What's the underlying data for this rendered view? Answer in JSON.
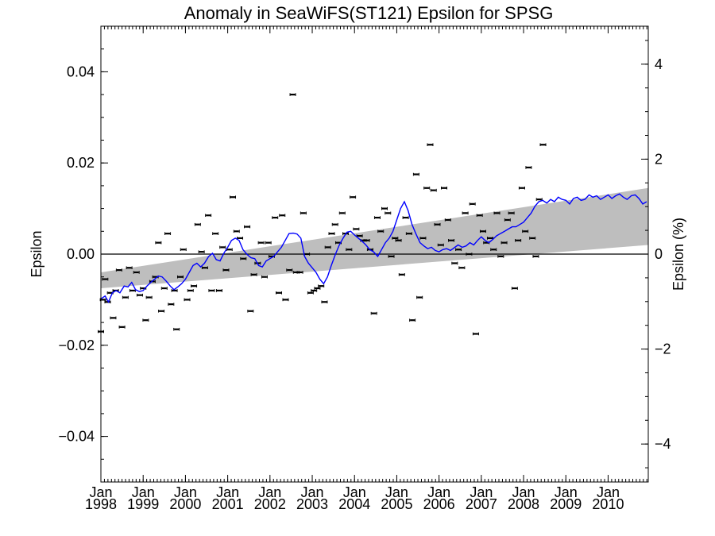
{
  "chart_data": {
    "type": "scatter",
    "title": "Anomaly in SeaWiFS(ST121) Epsilon for SPSG",
    "ylabel": "Epsilon",
    "ylabel_right": "Epsilon (%)",
    "xlim": [
      1998.0,
      2010.95
    ],
    "ylim": [
      -0.05,
      0.05
    ],
    "ylim_right": [
      -4.8,
      4.8
    ],
    "y_ticks": [
      {
        "value": 0.04,
        "label": "0.04"
      },
      {
        "value": 0.02,
        "label": "0.02"
      },
      {
        "value": 0.0,
        "label": "0.00"
      },
      {
        "value": -0.02,
        "label": "−0.02"
      },
      {
        "value": -0.04,
        "label": "−0.04"
      }
    ],
    "y_right_ticks": [
      {
        "value": 4,
        "label": "4"
      },
      {
        "value": 2,
        "label": "2"
      },
      {
        "value": 0,
        "label": "0"
      },
      {
        "value": -2,
        "label": "−2"
      },
      {
        "value": -4,
        "label": "−4"
      }
    ],
    "x_ticks": [
      {
        "value": 1998.0,
        "month": "Jan",
        "year": "1998"
      },
      {
        "value": 1999.0,
        "month": "Jan",
        "year": "1999"
      },
      {
        "value": 2000.0,
        "month": "Jan",
        "year": "2000"
      },
      {
        "value": 2001.0,
        "month": "Jan",
        "year": "2001"
      },
      {
        "value": 2002.0,
        "month": "Jan",
        "year": "2002"
      },
      {
        "value": 2003.0,
        "month": "Jan",
        "year": "2003"
      },
      {
        "value": 2004.0,
        "month": "Jan",
        "year": "2004"
      },
      {
        "value": 2005.0,
        "month": "Jan",
        "year": "2005"
      },
      {
        "value": 2006.0,
        "month": "Jan",
        "year": "2006"
      },
      {
        "value": 2007.0,
        "month": "Jan",
        "year": "2007"
      },
      {
        "value": 2008.0,
        "month": "Jan",
        "year": "2008"
      },
      {
        "value": 2009.0,
        "month": "Jan",
        "year": "2009"
      },
      {
        "value": 2010.0,
        "month": "Jan",
        "year": "2010"
      }
    ],
    "zero_line": true,
    "trend_band": {
      "lower": [
        [
          1998.0,
          -0.0075
        ],
        [
          2010.95,
          0.002
        ]
      ],
      "upper": [
        [
          1998.0,
          -0.004
        ],
        [
          2010.95,
          0.0145
        ]
      ],
      "color": "#bebebe"
    },
    "points": [
      [
        1998.0,
        -0.017
      ],
      [
        1998.05,
        -0.01
      ],
      [
        1998.1,
        -0.0055
      ],
      [
        1998.16,
        -0.0105
      ],
      [
        1998.22,
        -0.0085
      ],
      [
        1998.29,
        -0.014
      ],
      [
        1998.35,
        -0.008
      ],
      [
        1998.43,
        -0.0035
      ],
      [
        1998.5,
        -0.016
      ],
      [
        1998.58,
        -0.0095
      ],
      [
        1998.67,
        -0.003
      ],
      [
        1998.75,
        -0.008
      ],
      [
        1998.84,
        -0.004
      ],
      [
        1998.92,
        -0.009
      ],
      [
        1999.0,
        -0.0075
      ],
      [
        1999.06,
        -0.0145
      ],
      [
        1999.14,
        -0.0095
      ],
      [
        1999.22,
        -0.006
      ],
      [
        1999.29,
        -0.005
      ],
      [
        1999.36,
        0.0025
      ],
      [
        1999.43,
        -0.0125
      ],
      [
        1999.5,
        -0.0075
      ],
      [
        1999.58,
        0.0045
      ],
      [
        1999.66,
        -0.011
      ],
      [
        1999.74,
        -0.008
      ],
      [
        1999.79,
        -0.0165
      ],
      [
        1999.88,
        -0.005
      ],
      [
        1999.95,
        0.001
      ],
      [
        2000.04,
        -0.01
      ],
      [
        2000.12,
        -0.008
      ],
      [
        2000.2,
        -0.007
      ],
      [
        2000.29,
        0.0065
      ],
      [
        2000.38,
        0.0005
      ],
      [
        2000.46,
        -0.003
      ],
      [
        2000.54,
        0.0085
      ],
      [
        2000.62,
        -0.008
      ],
      [
        2000.71,
        0.0045
      ],
      [
        2000.8,
        -0.008
      ],
      [
        2000.88,
        0.0015
      ],
      [
        2000.96,
        -0.0035
      ],
      [
        2001.04,
        0.001
      ],
      [
        2001.12,
        0.0125
      ],
      [
        2001.21,
        0.005
      ],
      [
        2001.29,
        0.0035
      ],
      [
        2001.37,
        -0.001
      ],
      [
        2001.46,
        0.006
      ],
      [
        2001.54,
        -0.0125
      ],
      [
        2001.62,
        -0.0045
      ],
      [
        2001.71,
        -0.002
      ],
      [
        2001.79,
        0.0025
      ],
      [
        2001.87,
        -0.005
      ],
      [
        2001.96,
        0.0025
      ],
      [
        2002.04,
        -0.0005
      ],
      [
        2002.12,
        0.008
      ],
      [
        2002.21,
        -0.0085
      ],
      [
        2002.29,
        0.0085
      ],
      [
        2002.37,
        -0.01
      ],
      [
        2002.46,
        -0.0035
      ],
      [
        2002.54,
        0.035
      ],
      [
        2002.62,
        -0.004
      ],
      [
        2002.71,
        -0.004
      ],
      [
        2002.79,
        0.009
      ],
      [
        2002.87,
        0.0
      ],
      [
        2002.96,
        -0.0085
      ],
      [
        2003.04,
        -0.008
      ],
      [
        2003.12,
        -0.0075
      ],
      [
        2003.21,
        -0.007
      ],
      [
        2003.29,
        -0.0105
      ],
      [
        2003.37,
        0.0015
      ],
      [
        2003.46,
        0.0045
      ],
      [
        2003.54,
        0.0065
      ],
      [
        2003.62,
        0.0025
      ],
      [
        2003.71,
        0.009
      ],
      [
        2003.79,
        0.0045
      ],
      [
        2003.87,
        0.001
      ],
      [
        2003.96,
        0.0125
      ],
      [
        2004.04,
        0.0055
      ],
      [
        2004.12,
        0.004
      ],
      [
        2004.21,
        0.003
      ],
      [
        2004.29,
        0.003
      ],
      [
        2004.37,
        0.001
      ],
      [
        2004.46,
        -0.013
      ],
      [
        2004.54,
        0.008
      ],
      [
        2004.62,
        0.005
      ],
      [
        2004.71,
        0.01
      ],
      [
        2004.79,
        0.009
      ],
      [
        2004.87,
        -0.0005
      ],
      [
        2004.96,
        0.0035
      ],
      [
        2005.04,
        0.003
      ],
      [
        2005.12,
        -0.0045
      ],
      [
        2005.21,
        0.008
      ],
      [
        2005.29,
        0.0045
      ],
      [
        2005.37,
        -0.0145
      ],
      [
        2005.46,
        0.0175
      ],
      [
        2005.54,
        -0.0095
      ],
      [
        2005.62,
        0.0035
      ],
      [
        2005.71,
        0.0145
      ],
      [
        2005.79,
        0.024
      ],
      [
        2005.87,
        0.014
      ],
      [
        2005.96,
        0.0065
      ],
      [
        2006.04,
        0.002
      ],
      [
        2006.12,
        0.0145
      ],
      [
        2006.21,
        0.0075
      ],
      [
        2006.29,
        0.003
      ],
      [
        2006.37,
        -0.002
      ],
      [
        2006.46,
        0.001
      ],
      [
        2006.54,
        -0.003
      ],
      [
        2006.62,
        0.009
      ],
      [
        2006.71,
        0.0
      ],
      [
        2006.79,
        0.011
      ],
      [
        2006.87,
        -0.0175
      ],
      [
        2006.96,
        0.0085
      ],
      [
        2007.04,
        0.005
      ],
      [
        2007.12,
        0.0025
      ],
      [
        2007.21,
        0.0035
      ],
      [
        2007.29,
        0.001
      ],
      [
        2007.37,
        0.009
      ],
      [
        2007.46,
        -0.0005
      ],
      [
        2007.54,
        0.0025
      ],
      [
        2007.62,
        0.0075
      ],
      [
        2007.71,
        0.009
      ],
      [
        2007.79,
        -0.0075
      ],
      [
        2007.87,
        0.003
      ],
      [
        2007.96,
        0.0145
      ],
      [
        2008.04,
        0.005
      ],
      [
        2008.12,
        0.019
      ],
      [
        2008.21,
        0.0035
      ],
      [
        2008.29,
        -0.0005
      ],
      [
        2008.37,
        0.012
      ],
      [
        2008.46,
        0.024
      ]
    ],
    "line_series": {
      "color": "#0000ff",
      "points": [
        [
          1998.0,
          -0.0098
        ],
        [
          1998.1,
          -0.0092
        ],
        [
          1998.18,
          -0.0105
        ],
        [
          1998.27,
          -0.0085
        ],
        [
          1998.36,
          -0.008
        ],
        [
          1998.45,
          -0.0085
        ],
        [
          1998.55,
          -0.007
        ],
        [
          1998.64,
          -0.0072
        ],
        [
          1998.73,
          -0.0062
        ],
        [
          1998.82,
          -0.0078
        ],
        [
          1998.91,
          -0.0082
        ],
        [
          1999.0,
          -0.008
        ],
        [
          1999.09,
          -0.007
        ],
        [
          1999.18,
          -0.0062
        ],
        [
          1999.27,
          -0.0055
        ],
        [
          1999.36,
          -0.0048
        ],
        [
          1999.45,
          -0.005
        ],
        [
          1999.55,
          -0.006
        ],
        [
          1999.64,
          -0.007
        ],
        [
          1999.73,
          -0.0078
        ],
        [
          1999.82,
          -0.0072
        ],
        [
          1999.91,
          -0.0065
        ],
        [
          2000.0,
          -0.0055
        ],
        [
          2000.09,
          -0.004
        ],
        [
          2000.18,
          -0.0025
        ],
        [
          2000.27,
          -0.002
        ],
        [
          2000.36,
          -0.0028
        ],
        [
          2000.45,
          -0.002
        ],
        [
          2000.55,
          -0.0005
        ],
        [
          2000.64,
          0.0002
        ],
        [
          2000.73,
          -0.0012
        ],
        [
          2000.82,
          -0.0015
        ],
        [
          2000.91,
          0.0002
        ],
        [
          2001.0,
          0.0015
        ],
        [
          2001.09,
          0.003
        ],
        [
          2001.18,
          0.0035
        ],
        [
          2001.27,
          0.003
        ],
        [
          2001.36,
          0.001
        ],
        [
          2001.45,
          0.0
        ],
        [
          2001.55,
          -0.0008
        ],
        [
          2001.64,
          -0.001
        ],
        [
          2001.73,
          -0.0025
        ],
        [
          2001.82,
          -0.0028
        ],
        [
          2001.91,
          -0.0015
        ],
        [
          2002.0,
          -0.001
        ],
        [
          2002.09,
          -0.0005
        ],
        [
          2002.18,
          0.0005
        ],
        [
          2002.27,
          0.0015
        ],
        [
          2002.36,
          0.003
        ],
        [
          2002.45,
          0.0045
        ],
        [
          2002.55,
          0.0046
        ],
        [
          2002.64,
          0.0044
        ],
        [
          2002.73,
          0.0035
        ],
        [
          2002.82,
          -0.0005
        ],
        [
          2002.91,
          -0.002
        ],
        [
          2003.0,
          -0.003
        ],
        [
          2003.09,
          -0.004
        ],
        [
          2003.18,
          -0.0055
        ],
        [
          2003.27,
          -0.0065
        ],
        [
          2003.36,
          -0.005
        ],
        [
          2003.45,
          -0.0025
        ],
        [
          2003.55,
          0.0
        ],
        [
          2003.64,
          0.002
        ],
        [
          2003.73,
          0.0035
        ],
        [
          2003.82,
          0.0048
        ],
        [
          2003.91,
          0.005
        ],
        [
          2004.0,
          0.0042
        ],
        [
          2004.09,
          0.0035
        ],
        [
          2004.18,
          0.0028
        ],
        [
          2004.27,
          0.002
        ],
        [
          2004.36,
          0.001
        ],
        [
          2004.45,
          0.0005
        ],
        [
          2004.55,
          -0.0005
        ],
        [
          2004.64,
          0.001
        ],
        [
          2004.73,
          0.0025
        ],
        [
          2004.82,
          0.0035
        ],
        [
          2004.91,
          0.005
        ],
        [
          2005.0,
          0.0075
        ],
        [
          2005.09,
          0.01
        ],
        [
          2005.18,
          0.0115
        ],
        [
          2005.27,
          0.0095
        ],
        [
          2005.36,
          0.0065
        ],
        [
          2005.45,
          0.0045
        ],
        [
          2005.55,
          0.0025
        ],
        [
          2005.64,
          0.0018
        ],
        [
          2005.73,
          0.0012
        ],
        [
          2005.82,
          0.0015
        ],
        [
          2005.91,
          0.0008
        ],
        [
          2006.0,
          0.0005
        ],
        [
          2006.09,
          0.001
        ],
        [
          2006.18,
          0.0012
        ],
        [
          2006.27,
          0.0008
        ],
        [
          2006.36,
          0.0014
        ],
        [
          2006.45,
          0.002
        ],
        [
          2006.55,
          0.0015
        ],
        [
          2006.64,
          0.0018
        ],
        [
          2006.73,
          0.0025
        ],
        [
          2006.82,
          0.002
        ],
        [
          2006.91,
          0.003
        ],
        [
          2007.0,
          0.0038
        ],
        [
          2007.09,
          0.003
        ],
        [
          2007.18,
          0.0025
        ],
        [
          2007.27,
          0.0032
        ],
        [
          2007.36,
          0.004
        ],
        [
          2007.45,
          0.0045
        ],
        [
          2007.55,
          0.005
        ],
        [
          2007.64,
          0.0055
        ],
        [
          2007.73,
          0.006
        ],
        [
          2007.82,
          0.006
        ],
        [
          2007.91,
          0.0065
        ],
        [
          2008.0,
          0.007
        ],
        [
          2008.09,
          0.008
        ],
        [
          2008.18,
          0.009
        ],
        [
          2008.27,
          0.0105
        ],
        [
          2008.36,
          0.0115
        ],
        [
          2008.45,
          0.0118
        ],
        [
          2008.55,
          0.0112
        ],
        [
          2008.64,
          0.012
        ],
        [
          2008.73,
          0.0115
        ],
        [
          2008.82,
          0.0125
        ],
        [
          2008.91,
          0.012
        ],
        [
          2009.0,
          0.0118
        ],
        [
          2009.09,
          0.011
        ],
        [
          2009.18,
          0.0122
        ],
        [
          2009.27,
          0.0125
        ],
        [
          2009.36,
          0.0118
        ],
        [
          2009.45,
          0.012
        ],
        [
          2009.55,
          0.013
        ],
        [
          2009.64,
          0.0125
        ],
        [
          2009.73,
          0.0128
        ],
        [
          2009.82,
          0.012
        ],
        [
          2009.91,
          0.0125
        ],
        [
          2010.0,
          0.013
        ],
        [
          2010.09,
          0.0122
        ],
        [
          2010.18,
          0.0128
        ],
        [
          2010.27,
          0.0132
        ],
        [
          2010.36,
          0.0125
        ],
        [
          2010.45,
          0.012
        ],
        [
          2010.55,
          0.0128
        ],
        [
          2010.64,
          0.013
        ],
        [
          2010.73,
          0.0122
        ],
        [
          2010.82,
          0.011
        ],
        [
          2010.91,
          0.0115
        ]
      ]
    }
  }
}
